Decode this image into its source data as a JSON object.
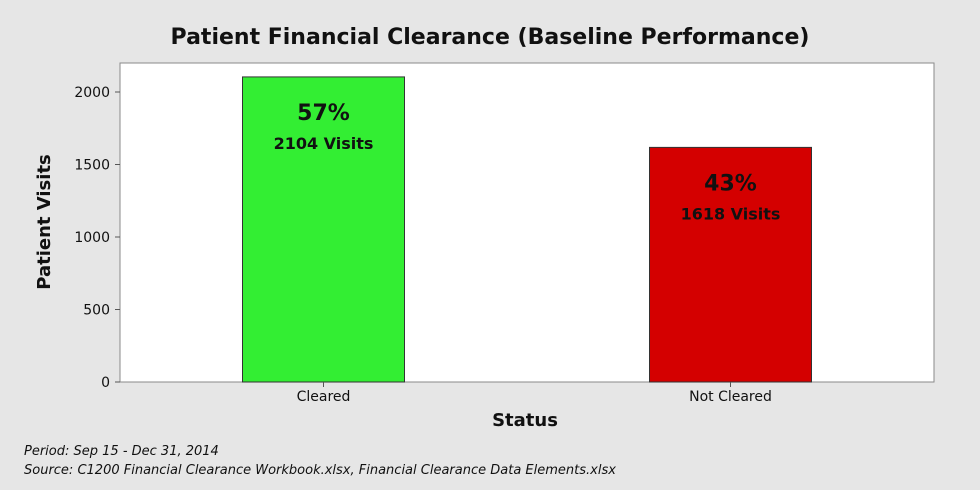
{
  "chart_data": {
    "type": "bar",
    "title": "Patient Financial Clearance (Baseline Performance)",
    "xlabel": "Status",
    "ylabel": "Patient Visits",
    "categories": [
      "Cleared",
      "Not Cleared"
    ],
    "values": [
      2104,
      1618
    ],
    "percent_labels": [
      "57%",
      "43%"
    ],
    "count_labels": [
      "2104 Visits",
      "1618 Visits"
    ],
    "bar_colors": [
      "#33ee33",
      "#d40000"
    ],
    "ylim": [
      0,
      2200
    ],
    "yticks": [
      0,
      500,
      1000,
      1500,
      2000
    ],
    "grid": false,
    "legend": "none"
  },
  "footnotes": {
    "period": "Period:  Sep 15 - Dec 31, 2014",
    "source": "Source:  C1200 Financial Clearance Workbook.xlsx, Financial Clearance Data Elements.xlsx"
  }
}
